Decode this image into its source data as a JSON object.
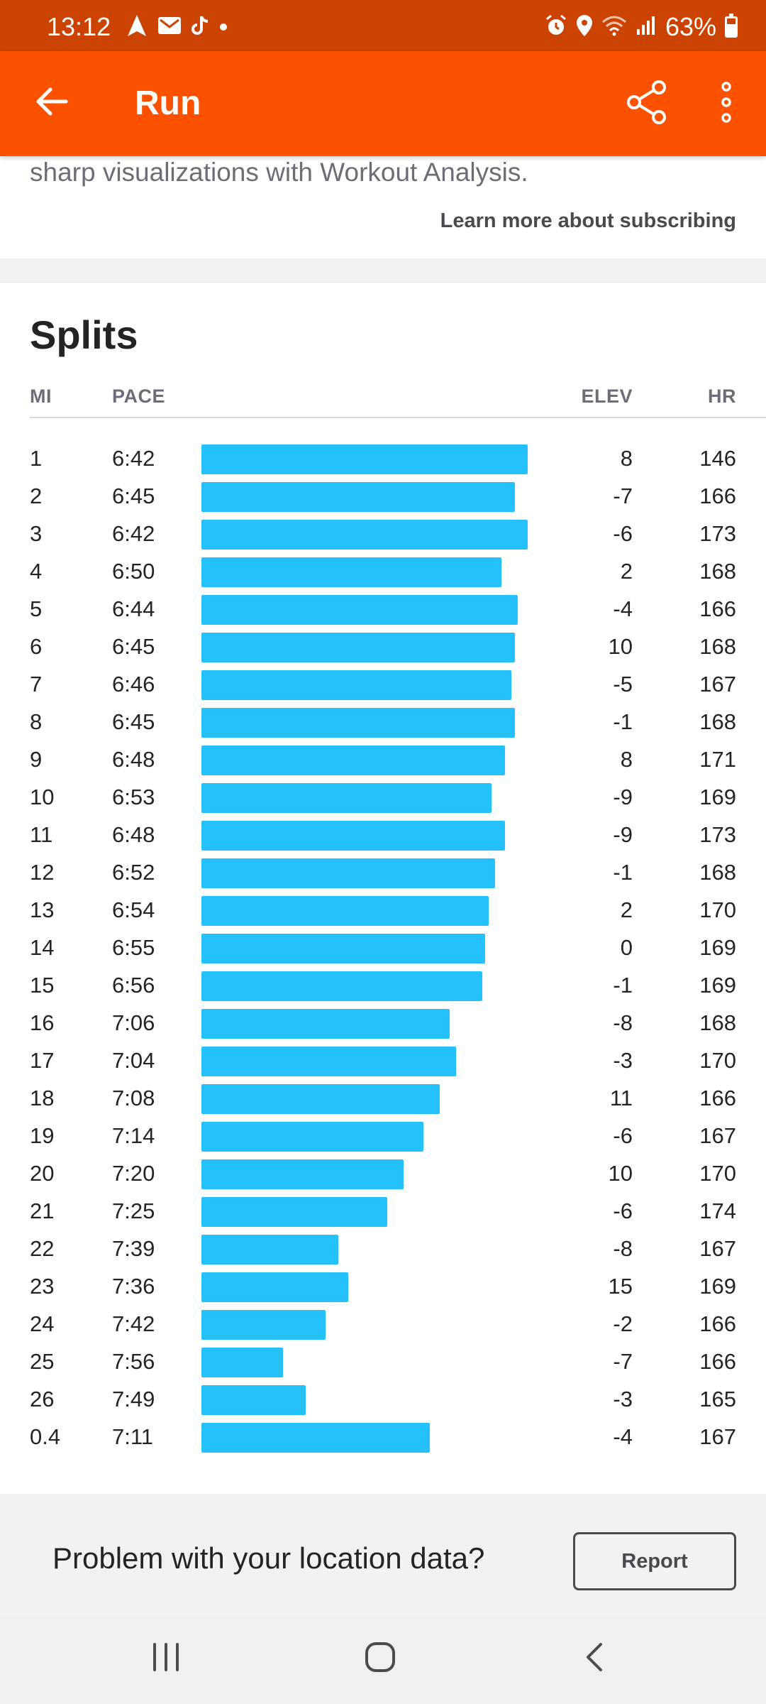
{
  "status_bar": {
    "time": "13:12",
    "battery": "63%",
    "left_icons": [
      "navigation-icon",
      "gmail-icon",
      "tiktok-icon",
      "dot-icon"
    ],
    "right_icons": [
      "alarm-icon",
      "location-icon",
      "wifi-icon",
      "signal-icon",
      "battery-icon"
    ]
  },
  "app_bar": {
    "title": "Run",
    "back_icon": "arrow-left-icon",
    "share_icon": "share-icon",
    "more_icon": "more-vertical-icon"
  },
  "promo": {
    "text": "sharp visualizations with Workout Analysis.",
    "link": "Learn more about subscribing"
  },
  "splits": {
    "title": "Splits",
    "headers": {
      "mi": "MI",
      "pace": "PACE",
      "elev": "ELEV",
      "hr": "HR"
    },
    "rows": [
      {
        "mi": "1",
        "pace": "6:42",
        "elev": "8",
        "hr": "146",
        "bar": 1.0
      },
      {
        "mi": "2",
        "pace": "6:45",
        "elev": "-7",
        "hr": "166",
        "bar": 0.96
      },
      {
        "mi": "3",
        "pace": "6:42",
        "elev": "-6",
        "hr": "173",
        "bar": 1.0
      },
      {
        "mi": "4",
        "pace": "6:50",
        "elev": "2",
        "hr": "168",
        "bar": 0.92
      },
      {
        "mi": "5",
        "pace": "6:44",
        "elev": "-4",
        "hr": "166",
        "bar": 0.97
      },
      {
        "mi": "6",
        "pace": "6:45",
        "elev": "10",
        "hr": "168",
        "bar": 0.96
      },
      {
        "mi": "7",
        "pace": "6:46",
        "elev": "-5",
        "hr": "167",
        "bar": 0.95
      },
      {
        "mi": "8",
        "pace": "6:45",
        "elev": "-1",
        "hr": "168",
        "bar": 0.96
      },
      {
        "mi": "9",
        "pace": "6:48",
        "elev": "8",
        "hr": "171",
        "bar": 0.93
      },
      {
        "mi": "10",
        "pace": "6:53",
        "elev": "-9",
        "hr": "169",
        "bar": 0.89
      },
      {
        "mi": "11",
        "pace": "6:48",
        "elev": "-9",
        "hr": "173",
        "bar": 0.93
      },
      {
        "mi": "12",
        "pace": "6:52",
        "elev": "-1",
        "hr": "168",
        "bar": 0.9
      },
      {
        "mi": "13",
        "pace": "6:54",
        "elev": "2",
        "hr": "170",
        "bar": 0.88
      },
      {
        "mi": "14",
        "pace": "6:55",
        "elev": "0",
        "hr": "169",
        "bar": 0.87
      },
      {
        "mi": "15",
        "pace": "6:56",
        "elev": "-1",
        "hr": "169",
        "bar": 0.86
      },
      {
        "mi": "16",
        "pace": "7:06",
        "elev": "-8",
        "hr": "168",
        "bar": 0.76
      },
      {
        "mi": "17",
        "pace": "7:04",
        "elev": "-3",
        "hr": "170",
        "bar": 0.78
      },
      {
        "mi": "18",
        "pace": "7:08",
        "elev": "11",
        "hr": "166",
        "bar": 0.73
      },
      {
        "mi": "19",
        "pace": "7:14",
        "elev": "-6",
        "hr": "167",
        "bar": 0.68
      },
      {
        "mi": "20",
        "pace": "7:20",
        "elev": "10",
        "hr": "170",
        "bar": 0.62
      },
      {
        "mi": "21",
        "pace": "7:25",
        "elev": "-6",
        "hr": "174",
        "bar": 0.57
      },
      {
        "mi": "22",
        "pace": "7:39",
        "elev": "-8",
        "hr": "167",
        "bar": 0.42
      },
      {
        "mi": "23",
        "pace": "7:36",
        "elev": "15",
        "hr": "169",
        "bar": 0.45
      },
      {
        "mi": "24",
        "pace": "7:42",
        "elev": "-2",
        "hr": "166",
        "bar": 0.38
      },
      {
        "mi": "25",
        "pace": "7:56",
        "elev": "-7",
        "hr": "166",
        "bar": 0.25
      },
      {
        "mi": "26",
        "pace": "7:49",
        "elev": "-3",
        "hr": "165",
        "bar": 0.32
      },
      {
        "mi": "0.4",
        "pace": "7:11",
        "elev": "-4",
        "hr": "167",
        "bar": 0.7
      }
    ]
  },
  "problem": {
    "text": "Problem with your location data?",
    "button": "Report"
  },
  "nav": {
    "recent_icon": "recent-apps-icon",
    "home_icon": "home-icon",
    "back_icon": "back-chevron-icon"
  },
  "colors": {
    "brand": "#fc5200",
    "status_bar": "#cc4200",
    "bar": "#24c1fc"
  }
}
